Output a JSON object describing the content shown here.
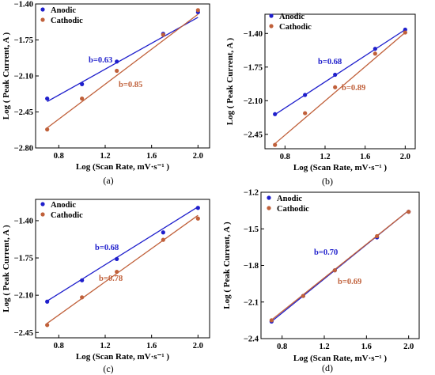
{
  "colors": {
    "anodic": "#1f1fcc",
    "cathodic": "#c0603a"
  },
  "chart_data": [
    {
      "panel_label": "(a)",
      "type": "scatter",
      "xlabel": "Log (Scan Rate, mV·s⁻¹ )",
      "ylabel": "Log ( Peak Current, A )",
      "xlim": [
        0.6,
        2.1
      ],
      "ylim": [
        -2.8,
        -1.4
      ],
      "xticks": [
        0.8,
        1.2,
        1.6,
        2.0
      ],
      "yticks": [
        -2.8,
        -2.45,
        -2.1,
        -1.75,
        -1.4
      ],
      "tick_labels_x": [
        "0.8",
        "1.2",
        "1.6",
        "2.0"
      ],
      "tick_labels_y": [
        "−2.80",
        "−2.45",
        "−2.10",
        "−1.75",
        "−1.40"
      ],
      "grid": false,
      "legend_position": "top-left",
      "series": [
        {
          "name": "Anodic",
          "color_key": "anodic",
          "x": [
            0.7,
            1.0,
            1.3,
            1.7,
            2.0
          ],
          "y": [
            -2.32,
            -2.18,
            -1.96,
            -1.69,
            -1.48
          ],
          "fit": {
            "label": "b=0.63",
            "slope": 0.63,
            "intercept": -2.79
          }
        },
        {
          "name": "Cathodic",
          "color_key": "cathodic",
          "x": [
            0.7,
            1.0,
            1.3,
            1.7,
            2.0
          ],
          "y": [
            -2.62,
            -2.32,
            -2.05,
            -1.7,
            -1.46
          ],
          "fit": {
            "label": "b=0.85",
            "slope": 0.85,
            "intercept": -3.2
          }
        }
      ]
    },
    {
      "panel_label": "(b)",
      "type": "scatter",
      "xlabel": "Log (Scan Rate, mV·s⁻¹ )",
      "ylabel": "Log ( Peak Current, A )",
      "xlim": [
        0.6,
        2.1
      ],
      "ylim": [
        -2.6,
        -1.2
      ],
      "xticks": [
        0.8,
        1.2,
        1.6,
        2.0
      ],
      "yticks": [
        -2.45,
        -2.1,
        -1.75,
        -1.4
      ],
      "tick_labels_x": [
        "0.8",
        "1.2",
        "1.6",
        "2.0"
      ],
      "tick_labels_y": [
        "−2.45",
        "−2.10",
        "−1.75",
        "−1.40"
      ],
      "grid": false,
      "legend_position": "top-left",
      "series": [
        {
          "name": "Anodic",
          "color_key": "anodic",
          "x": [
            0.7,
            1.0,
            1.3,
            1.7,
            2.0
          ],
          "y": [
            -2.24,
            -2.04,
            -1.83,
            -1.56,
            -1.36
          ],
          "fit": {
            "label": "b=0.68",
            "slope": 0.68,
            "intercept": -2.72
          }
        },
        {
          "name": "Cathodic",
          "color_key": "cathodic",
          "x": [
            0.7,
            1.0,
            1.3,
            1.7,
            2.0
          ],
          "y": [
            -2.56,
            -2.23,
            -1.96,
            -1.61,
            -1.39
          ],
          "fit": {
            "label": "b=0.89",
            "slope": 0.89,
            "intercept": -3.17
          }
        }
      ]
    },
    {
      "panel_label": "(c)",
      "type": "scatter",
      "xlabel": "Log (Scan Rate, mV·s⁻¹ )",
      "ylabel": "Log ( Peak Current, A )",
      "xlim": [
        0.6,
        2.1
      ],
      "ylim": [
        -2.5,
        -1.2
      ],
      "xticks": [
        0.8,
        1.2,
        1.6,
        2.0
      ],
      "yticks": [
        -2.45,
        -2.1,
        -1.75,
        -1.4
      ],
      "tick_labels_x": [
        "0.8",
        "1.2",
        "1.6",
        "2.0"
      ],
      "tick_labels_y": [
        "−2.45",
        "−2.10",
        "−1.75",
        "−1.40"
      ],
      "grid": false,
      "legend_position": "top-left",
      "series": [
        {
          "name": "Anodic",
          "color_key": "anodic",
          "x": [
            0.7,
            1.0,
            1.3,
            1.7,
            2.0
          ],
          "y": [
            -2.16,
            -1.96,
            -1.76,
            -1.51,
            -1.28
          ],
          "fit": {
            "label": "b=0.68",
            "slope": 0.68,
            "intercept": -2.63
          }
        },
        {
          "name": "Cathodic",
          "color_key": "cathodic",
          "x": [
            0.7,
            1.0,
            1.3,
            1.7,
            2.0
          ],
          "y": [
            -2.38,
            -2.12,
            -1.88,
            -1.58,
            -1.38
          ],
          "fit": {
            "label": "b=0.78",
            "slope": 0.78,
            "intercept": -2.91
          }
        }
      ]
    },
    {
      "panel_label": "(d)",
      "type": "scatter",
      "xlabel": "Log (Scan Rate, mV·s⁻¹ )",
      "ylabel": "Log ( Peak Current, A )",
      "xlim": [
        0.6,
        2.1
      ],
      "ylim": [
        -2.4,
        -1.2
      ],
      "xticks": [
        0.8,
        1.2,
        1.6,
        2.0
      ],
      "yticks": [
        -2.4,
        -2.1,
        -1.8,
        -1.5,
        -1.2
      ],
      "tick_labels_x": [
        "0.8",
        "1.2",
        "1.6",
        "2.0"
      ],
      "tick_labels_y": [
        "−2.4",
        "−2.1",
        "−1.8",
        "−1.5",
        "−1.2"
      ],
      "grid": false,
      "legend_position": "top-left",
      "series": [
        {
          "name": "Anodic",
          "color_key": "anodic",
          "x": [
            0.7,
            1.0,
            1.3,
            1.7,
            2.0
          ],
          "y": [
            -2.26,
            -2.05,
            -1.84,
            -1.57,
            -1.36
          ],
          "fit": {
            "label": "b=0.70",
            "slope": 0.7,
            "intercept": -2.75
          }
        },
        {
          "name": "Cathodic",
          "color_key": "cathodic",
          "x": [
            0.7,
            1.0,
            1.3,
            1.7,
            2.0
          ],
          "y": [
            -2.25,
            -2.05,
            -1.84,
            -1.56,
            -1.36
          ],
          "fit": {
            "label": "b=0.69",
            "slope": 0.69,
            "intercept": -2.73
          }
        }
      ]
    }
  ]
}
